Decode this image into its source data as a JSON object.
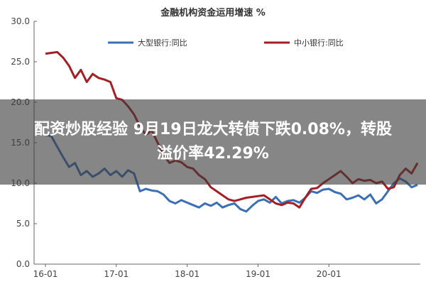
{
  "chart_data": {
    "type": "line",
    "title": "金融机构资金运用增速 %",
    "xlabel": "",
    "ylabel": "",
    "x_ticks": [
      "16-01",
      "17-01",
      "18-01",
      "19-01",
      "20-01"
    ],
    "ylim": [
      0,
      30
    ],
    "y_ticks": [
      "0.0",
      "5.0",
      "10.0",
      "15.0",
      "20.0",
      "25.0",
      "30.0"
    ],
    "grid": false,
    "legend_position": "top",
    "series": [
      {
        "name": "大型银行:同比",
        "color": "#3a6fb5",
        "values": [
          16.0,
          15.8,
          14.5,
          13.2,
          12.0,
          12.5,
          11.0,
          11.5,
          10.8,
          11.2,
          11.8,
          11.0,
          11.5,
          10.8,
          11.6,
          11.2,
          9.0,
          9.3,
          9.1,
          9.0,
          8.6,
          7.8,
          7.5,
          7.9,
          7.6,
          7.3,
          7.0,
          7.5,
          7.2,
          7.6,
          7.0,
          7.3,
          7.5,
          6.8,
          6.5,
          7.2,
          7.8,
          8.0,
          7.6,
          8.3,
          7.5,
          7.8,
          7.9,
          7.6,
          8.2,
          9.0,
          8.8,
          9.2,
          9.3,
          8.9,
          8.7,
          8.0,
          8.2,
          8.5,
          8.0,
          8.6,
          7.5,
          8.0,
          9.0,
          10.0,
          10.6,
          10.2,
          9.5,
          9.8
        ]
      },
      {
        "name": "中小银行:同比",
        "color": "#a31f24",
        "values": [
          26.0,
          26.1,
          26.2,
          25.5,
          24.5,
          23.0,
          24.0,
          22.5,
          23.5,
          23.0,
          22.8,
          22.5,
          20.5,
          20.3,
          19.5,
          18.5,
          17.0,
          16.0,
          16.5,
          15.0,
          13.5,
          12.5,
          12.8,
          12.6,
          12.0,
          11.8,
          11.0,
          10.5,
          9.5,
          9.0,
          8.5,
          8.0,
          7.8,
          8.0,
          8.2,
          8.3,
          8.4,
          8.5,
          8.0,
          7.5,
          7.3,
          7.6,
          7.5,
          7.0,
          8.2,
          9.3,
          9.4,
          10.0,
          10.5,
          11.0,
          11.5,
          10.8,
          10.0,
          10.5,
          10.3,
          10.4,
          10.0,
          10.2,
          9.3,
          9.5,
          11.0,
          11.8,
          11.2,
          12.5
        ]
      }
    ]
  },
  "overlay": {
    "line1": "配资炒股经验 9月19日龙大转债下跌0.08%，转股",
    "line2": "溢价率42.29%"
  }
}
